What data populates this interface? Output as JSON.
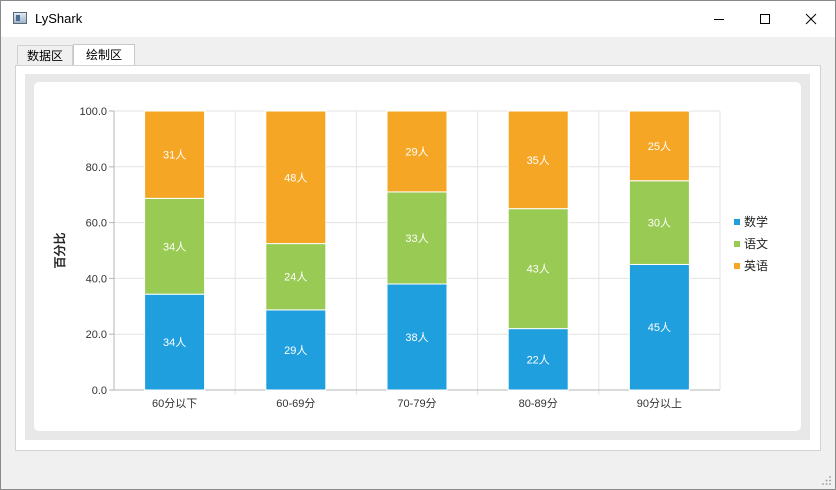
{
  "window": {
    "title": "LyShark"
  },
  "tabs": [
    {
      "label": "数据区",
      "active": false
    },
    {
      "label": "绘制区",
      "active": true
    }
  ],
  "colors": {
    "series_1": "#209fdf",
    "series_2": "#99ca53",
    "series_3": "#f6a625"
  },
  "chart_data": {
    "type": "bar",
    "stacked": "percent",
    "title": "",
    "xlabel": "",
    "ylabel": "百分比",
    "ylim": [
      0,
      100
    ],
    "yticks": [
      "0.0",
      "20.0",
      "40.0",
      "60.0",
      "80.0",
      "100.0"
    ],
    "categories": [
      "60分以下",
      "60-69分",
      "70-79分",
      "80-89分",
      "90分以上"
    ],
    "legend_position": "right",
    "grid": true,
    "series": [
      {
        "name": "数学",
        "values": [
          34,
          29,
          38,
          22,
          45
        ],
        "labels": [
          "34人",
          "29人",
          "38人",
          "22人",
          "45人"
        ]
      },
      {
        "name": "语文",
        "values": [
          34,
          24,
          33,
          43,
          30
        ],
        "labels": [
          "34人",
          "24人",
          "33人",
          "43人",
          "30人"
        ]
      },
      {
        "name": "英语",
        "values": [
          31,
          48,
          29,
          35,
          25
        ],
        "labels": [
          "31人",
          "48人",
          "29人",
          "35人",
          "25人"
        ]
      }
    ]
  }
}
